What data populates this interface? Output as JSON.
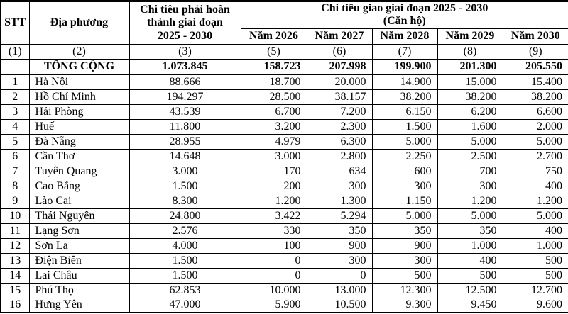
{
  "table": {
    "headers": {
      "stt": "STT",
      "dia_phuong": "Địa phương",
      "target_col": "Chi tiêu phải hoàn thành giai đoạn\n2025 - 2030",
      "assigned_line1": "Chi tiêu giao giai đoạn 2025 - 2030",
      "assigned_line2": "(Căn hộ)",
      "years": [
        "Năm 2026",
        "Năm 2027",
        "Năm 2028",
        "Năm 2029",
        "Năm 2030"
      ]
    },
    "column_numbers": [
      "(1)",
      "(2)",
      "(3)",
      "(5)",
      "(6)",
      "(7)",
      "(8)",
      "(9)"
    ],
    "total_row": {
      "label": "TỔNG CỘNG",
      "target": "1.073.845",
      "years": [
        "158.723",
        "207.998",
        "199.900",
        "201.300",
        "205.550"
      ]
    },
    "rows": [
      {
        "stt": "1",
        "name": "Hà Nội",
        "target": "88.666",
        "years": [
          "18.700",
          "20.000",
          "14.900",
          "15.000",
          "15.400"
        ]
      },
      {
        "stt": "2",
        "name": "Hồ Chí Minh",
        "target": "194.297",
        "years": [
          "28.500",
          "38.157",
          "38.200",
          "38.200",
          "38.200"
        ]
      },
      {
        "stt": "3",
        "name": "Hải Phòng",
        "target": "43.539",
        "years": [
          "6.700",
          "7.200",
          "6.150",
          "6.200",
          "6.600"
        ]
      },
      {
        "stt": "4",
        "name": "Huế",
        "target": "11.800",
        "years": [
          "3.200",
          "2.300",
          "1.500",
          "1.600",
          "2.000"
        ]
      },
      {
        "stt": "5",
        "name": "Đà Nẵng",
        "target": "28.955",
        "years": [
          "4.979",
          "6.300",
          "5.000",
          "5.000",
          "5.000"
        ]
      },
      {
        "stt": "6",
        "name": "Cần Thơ",
        "target": "14.648",
        "years": [
          "3.000",
          "2.800",
          "2.250",
          "2.500",
          "2.700"
        ]
      },
      {
        "stt": "7",
        "name": "Tuyên Quang",
        "target": "3.000",
        "years": [
          "170",
          "634",
          "600",
          "700",
          "750"
        ]
      },
      {
        "stt": "8",
        "name": "Cao Bằng",
        "target": "1.500",
        "years": [
          "200",
          "300",
          "300",
          "300",
          "400"
        ]
      },
      {
        "stt": "9",
        "name": "Lào Cai",
        "target": "8.300",
        "years": [
          "1.200",
          "1.300",
          "1.150",
          "1.200",
          "1.200"
        ]
      },
      {
        "stt": "10",
        "name": "Thái Nguyên",
        "target": "24.800",
        "years": [
          "3.422",
          "5.294",
          "5.000",
          "5.000",
          "5.000"
        ]
      },
      {
        "stt": "11",
        "name": "Lạng Sơn",
        "target": "2.576",
        "years": [
          "330",
          "350",
          "350",
          "350",
          "400"
        ]
      },
      {
        "stt": "12",
        "name": "Sơn La",
        "target": "4.000",
        "years": [
          "100",
          "900",
          "900",
          "1.000",
          "1.000"
        ]
      },
      {
        "stt": "13",
        "name": "Điện Biên",
        "target": "1.500",
        "years": [
          "0",
          "300",
          "300",
          "400",
          "500"
        ]
      },
      {
        "stt": "14",
        "name": "Lai Châu",
        "target": "1.500",
        "years": [
          "0",
          "0",
          "500",
          "500",
          "500"
        ]
      },
      {
        "stt": "15",
        "name": "Phú Thọ",
        "target": "62.853",
        "years": [
          "10.000",
          "13.000",
          "12.300",
          "12.500",
          "12.700"
        ]
      },
      {
        "stt": "16",
        "name": "Hưng Yên",
        "target": "47.000",
        "years": [
          "5.900",
          "10.500",
          "9.300",
          "9.450",
          "9.600"
        ]
      }
    ]
  }
}
